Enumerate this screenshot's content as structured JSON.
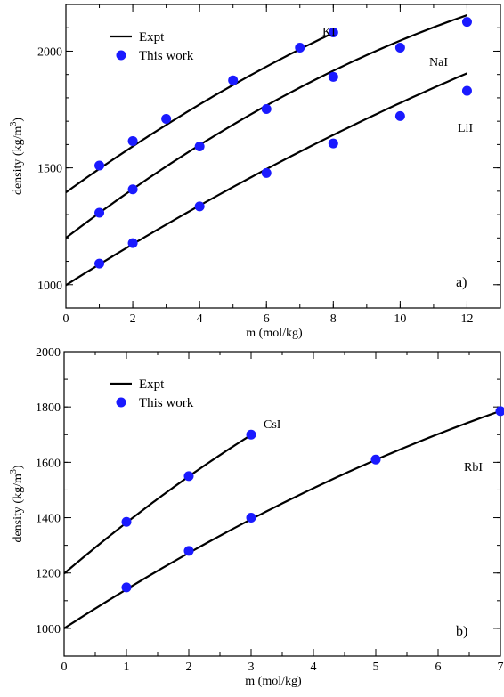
{
  "colors": {
    "point": "#1a1aff",
    "curve": "#000000"
  },
  "chart_data": [
    {
      "type": "line",
      "panel_label": "a)",
      "xlabel": "m (mol/kg)",
      "ylabel": "density  (kg/m",
      "ylabel_sup": "3",
      "ylabel_end": ")",
      "xlim": [
        0,
        13
      ],
      "ylim": [
        900,
        2200
      ],
      "xticks": [
        0,
        2,
        4,
        6,
        8,
        10,
        12
      ],
      "yticks": [
        1000,
        1500,
        2000
      ],
      "x_minor_step": 1,
      "y_minor_step": 100,
      "legend": {
        "placement": "top-left",
        "line_label": "Expt",
        "marker_label": "This work"
      },
      "series": [
        {
          "name": "KI",
          "curve": {
            "x0": 0,
            "x1": 8,
            "y0": 1395,
            "a": 103,
            "b": -2.2
          },
          "points": [
            [
              1,
              1510
            ],
            [
              2,
              1615
            ],
            [
              3,
              1710
            ],
            [
              5,
              1875
            ],
            [
              7,
              2015
            ],
            [
              8,
              2080
            ]
          ]
        },
        {
          "name": "NaI",
          "curve": {
            "x0": 0,
            "x1": 12,
            "y0": 1200,
            "a": 109.5,
            "b": -2.5
          },
          "points": [
            [
              1,
              1308
            ],
            [
              2,
              1408
            ],
            [
              4,
              1592
            ],
            [
              6,
              1752
            ],
            [
              8,
              1890
            ],
            [
              10,
              2015
            ],
            [
              12,
              2125
            ]
          ]
        },
        {
          "name": "LiI",
          "curve": {
            "x0": 0,
            "x1": 12,
            "y0": 998,
            "a": 90,
            "b": -1.2
          },
          "points": [
            [
              1,
              1090
            ],
            [
              2,
              1178
            ],
            [
              4,
              1335
            ],
            [
              6,
              1478
            ],
            [
              8,
              1605
            ],
            [
              10,
              1722
            ],
            [
              12,
              1830
            ]
          ]
        }
      ]
    },
    {
      "type": "line",
      "panel_label": "b)",
      "xlabel": "m (mol/kg)",
      "ylabel": "density (kg/m",
      "ylabel_sup": "3",
      "ylabel_end": ")",
      "xlim": [
        0,
        7
      ],
      "ylim": [
        900,
        2000
      ],
      "xticks": [
        0,
        1,
        2,
        3,
        4,
        5,
        6,
        7
      ],
      "yticks": [
        1000,
        1200,
        1400,
        1600,
        1800,
        2000
      ],
      "x_minor_step": 0.5,
      "y_minor_step": 100,
      "legend": {
        "placement": "top-left",
        "line_label": "Expt",
        "marker_label": "This work"
      },
      "series": [
        {
          "name": "CsI",
          "curve": {
            "x0": 0,
            "x1": 3,
            "y0": 1198,
            "a": 192.5,
            "b": -8.5
          },
          "points": [
            [
              1,
              1385
            ],
            [
              2,
              1550
            ],
            [
              3,
              1700
            ]
          ]
        },
        {
          "name": "RbI",
          "curve": {
            "x0": 0,
            "x1": 7,
            "y0": 1000,
            "a": 145.8,
            "b": -4.8
          },
          "points": [
            [
              1,
              1148
            ],
            [
              2,
              1280
            ],
            [
              3,
              1400
            ],
            [
              5,
              1610
            ],
            [
              7,
              1785
            ]
          ]
        }
      ]
    }
  ]
}
